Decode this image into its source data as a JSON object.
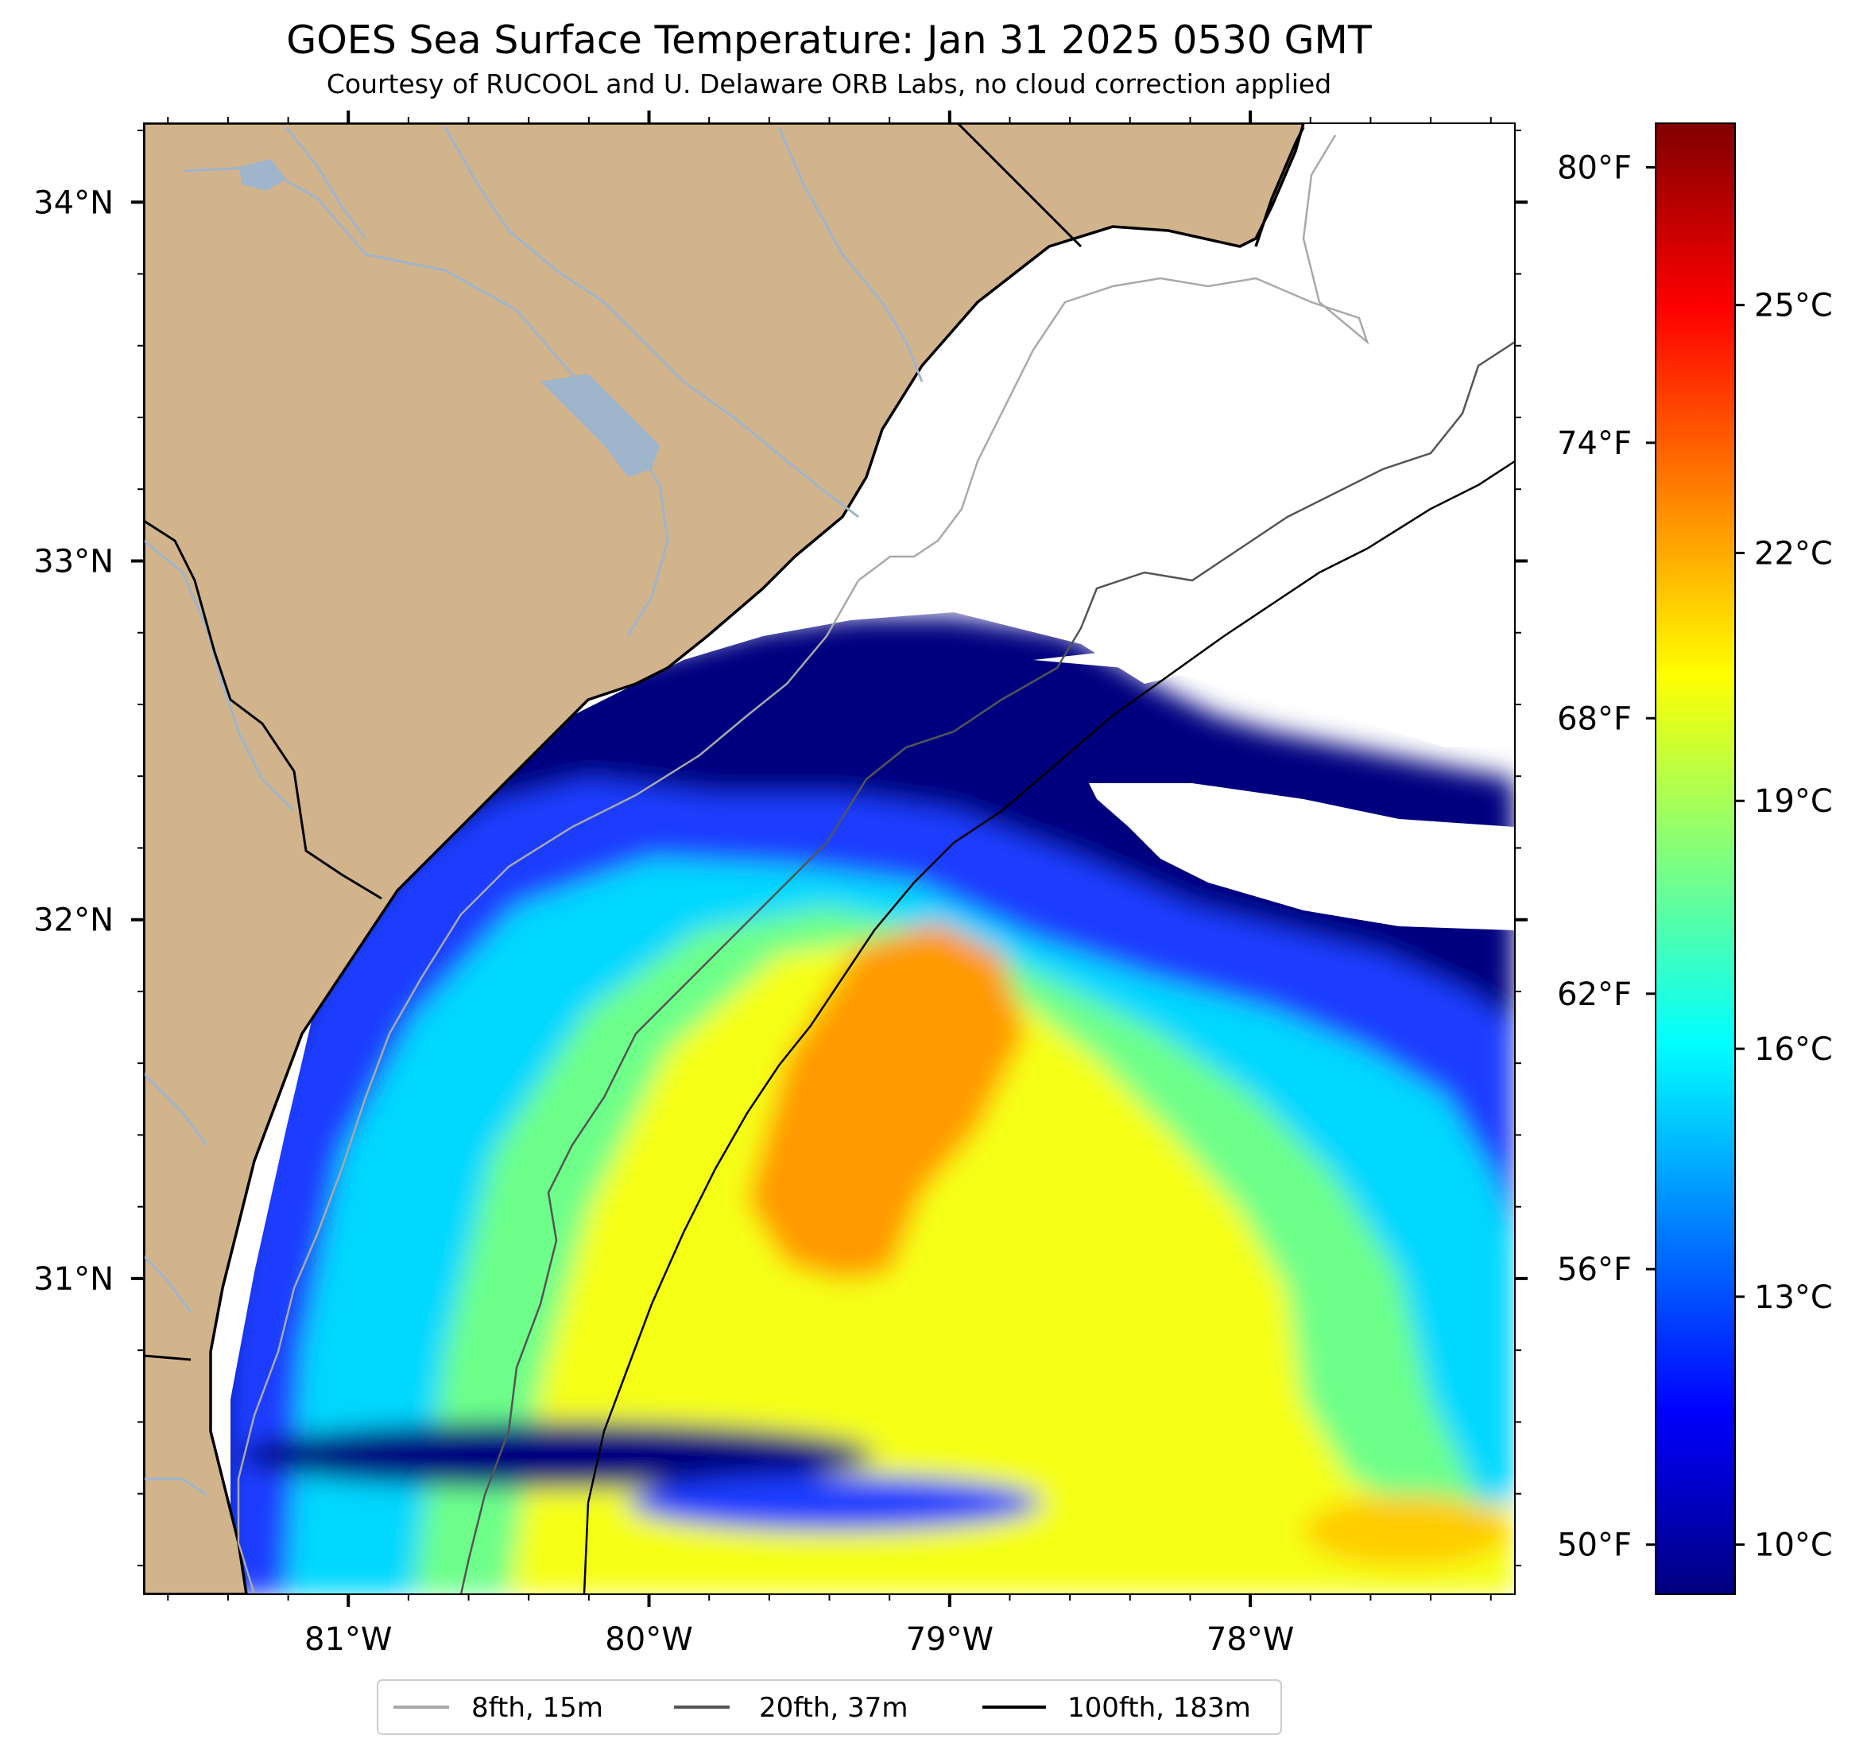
{
  "title": "GOES Sea Surface Temperature: Jan 31 2025 0530 GMT",
  "subtitle": "Courtesy of RUCOOL and U. Delaware ORB Labs, no cloud correction applied",
  "map": {
    "lon_range": [
      -81.68,
      -77.12
    ],
    "lat_range": [
      30.12,
      34.22
    ],
    "lon_ticks": [
      {
        "value": -81,
        "label": "81°W"
      },
      {
        "value": -80,
        "label": "80°W"
      },
      {
        "value": -79,
        "label": "79°W"
      },
      {
        "value": -78,
        "label": "78°W"
      }
    ],
    "lat_ticks": [
      {
        "value": 34,
        "label": "34°N"
      },
      {
        "value": 33,
        "label": "33°N"
      },
      {
        "value": 32,
        "label": "32°N"
      },
      {
        "value": 31,
        "label": "31°N"
      }
    ],
    "land_color": "#d2b48c",
    "river_color": "#9fb5cc",
    "no_data_color": "#ffffff"
  },
  "colorbar": {
    "colormap": "jet",
    "range_c": [
      9.4,
      27.2
    ],
    "celsius_ticks": [
      {
        "value": 10,
        "label": "10°C"
      },
      {
        "value": 13,
        "label": "13°C"
      },
      {
        "value": 16,
        "label": "16°C"
      },
      {
        "value": 19,
        "label": "19°C"
      },
      {
        "value": 22,
        "label": "22°C"
      },
      {
        "value": 25,
        "label": "25°C"
      }
    ],
    "fahrenheit_ticks": [
      {
        "value": 50,
        "label": "50°F"
      },
      {
        "value": 56,
        "label": "56°F"
      },
      {
        "value": 62,
        "label": "62°F"
      },
      {
        "value": 68,
        "label": "68°F"
      },
      {
        "value": 74,
        "label": "74°F"
      },
      {
        "value": 80,
        "label": "80°F"
      }
    ]
  },
  "legend": {
    "placement": "bottom-center",
    "items": [
      {
        "label": "8fth, 15m",
        "color": "#a9a9a9"
      },
      {
        "label": "20fth, 37m",
        "color": "#555555"
      },
      {
        "label": "100fth, 183m",
        "color": "#000000"
      }
    ]
  }
}
